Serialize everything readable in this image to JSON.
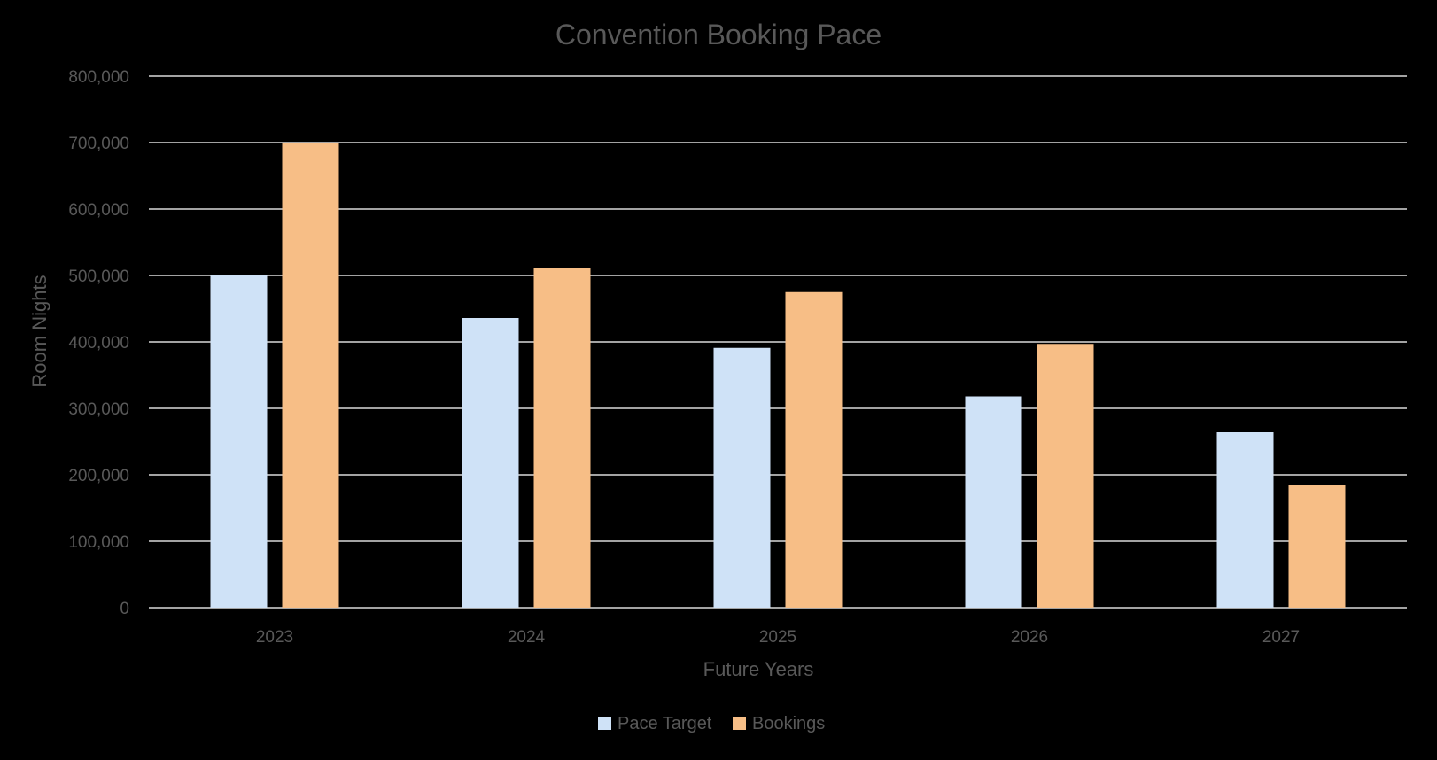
{
  "colors": {
    "background": "#000000",
    "gridline": "#d9d9d9",
    "text": "#595959"
  },
  "chart_data": {
    "type": "bar",
    "title": "Convention Booking Pace",
    "xlabel": "Future Years",
    "ylabel": "Room Nights",
    "categories": [
      "2023",
      "2024",
      "2025",
      "2026",
      "2027"
    ],
    "series": [
      {
        "name": "Pace Target",
        "color": "#cfe2f7",
        "values": [
          500000,
          436000,
          391000,
          318000,
          264000
        ]
      },
      {
        "name": "Bookings",
        "color": "#f7be86",
        "values": [
          700000,
          512000,
          475000,
          397000,
          184000
        ]
      }
    ],
    "ylim": [
      0,
      800000
    ],
    "yticks": [
      0,
      100000,
      200000,
      300000,
      400000,
      500000,
      600000,
      700000,
      800000
    ],
    "ytick_labels": [
      "0",
      "100,000",
      "200,000",
      "300,000",
      "400,000",
      "500,000",
      "600,000",
      "700,000",
      "800,000"
    ],
    "grid": true,
    "legend_position": "bottom"
  }
}
